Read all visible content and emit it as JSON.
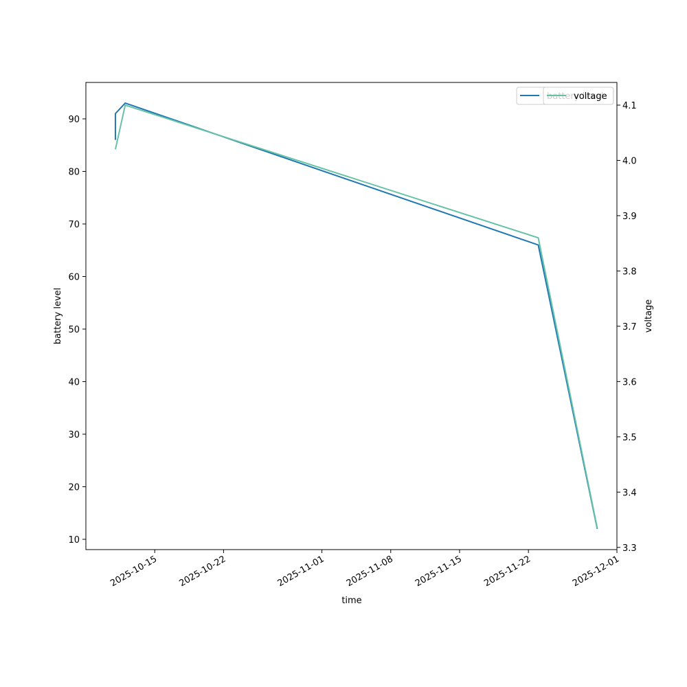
{
  "chart_data": {
    "type": "line",
    "xlabel": "time",
    "ylabel": "battery level",
    "y2label": "voltage",
    "xlim": [
      "2025-10-08",
      "2025-12-01"
    ],
    "xticks": [
      "2025-10-15",
      "2025-10-22",
      "2025-11-01",
      "2025-11-08",
      "2025-11-15",
      "2025-11-22",
      "2025-12-01"
    ],
    "ylim": [
      8.04,
      96.93
    ],
    "yticks": [
      10,
      20,
      30,
      40,
      50,
      60,
      70,
      80,
      90
    ],
    "y2lim": [
      3.296,
      4.141
    ],
    "y2ticks": [
      3.3,
      3.4,
      3.5,
      3.6,
      3.7,
      3.8,
      3.9,
      {
        "value": 4.0,
        "label": "4.0"
      },
      4.1
    ],
    "series": [
      {
        "name": "battery level",
        "color": "#1f77b4",
        "x": [
          "2025-10-11",
          "2025-10-11",
          "2025-10-12",
          "2025-11-23",
          "2025-11-29"
        ],
        "values": [
          86,
          91,
          93,
          66,
          12
        ]
      },
      {
        "name": "voltage",
        "color": "#66c2a5",
        "axis": "y2",
        "x": [
          "2025-10-11",
          "2025-10-12",
          "2025-11-23",
          "2025-11-29"
        ],
        "values": [
          4.02,
          4.1,
          3.86,
          3.335
        ]
      }
    ]
  }
}
